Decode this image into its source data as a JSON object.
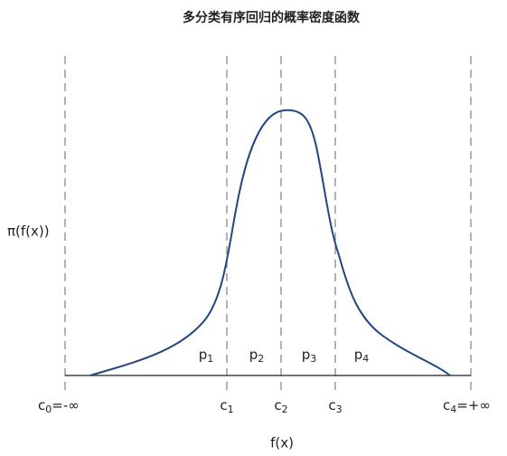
{
  "title": "多分类有序回归的概率密度函数",
  "y_label": "π(f(x))",
  "x_label": "f(x)",
  "regions": [
    {
      "base": "p",
      "sub": "1"
    },
    {
      "base": "p",
      "sub": "2"
    },
    {
      "base": "p",
      "sub": "3"
    },
    {
      "base": "p",
      "sub": "4"
    }
  ],
  "thresholds": [
    {
      "base": "c",
      "sub": "0",
      "suffix": "=-∞"
    },
    {
      "base": "c",
      "sub": "1"
    },
    {
      "base": "c",
      "sub": "2"
    },
    {
      "base": "c",
      "sub": "3"
    },
    {
      "base": "c",
      "sub": "4",
      "suffix": "=+∞"
    }
  ]
}
